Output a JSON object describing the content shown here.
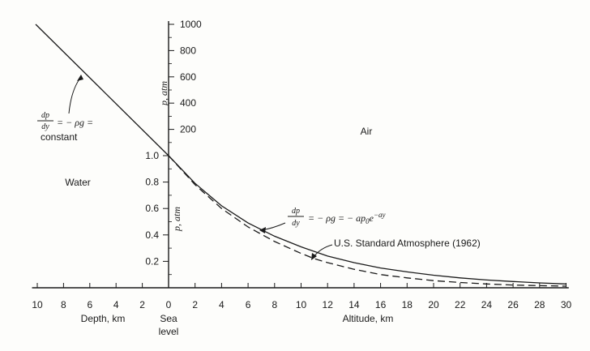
{
  "chart_data": {
    "type": "line",
    "x_axis": {
      "tick_labels_left": [
        "10",
        "8",
        "6",
        "4",
        "2"
      ],
      "tick_labels_right": [
        "0",
        "2",
        "4",
        "6",
        "8",
        "10",
        "12",
        "14",
        "16",
        "18",
        "20",
        "22",
        "24",
        "26",
        "28",
        "30"
      ],
      "xlabel_left": "Depth, km",
      "xlabel_center": [
        "Sea",
        "level"
      ],
      "xlabel_right": "Altitude, km",
      "range": [
        -10,
        30
      ]
    },
    "y_axis_upper": {
      "label": "p, atm",
      "tick_labels": [
        "200",
        "400",
        "600",
        "800",
        "1000"
      ],
      "range": [
        0,
        1000
      ]
    },
    "y_axis_lower": {
      "label": "p, atm",
      "tick_labels": [
        "0.2",
        "0.4",
        "0.6",
        "0.8",
        "1.0"
      ],
      "range": [
        0,
        1.0
      ]
    },
    "regions": {
      "water": "Water",
      "air": "Air"
    },
    "annotations": {
      "water_eq": {
        "frac_num": "dp",
        "frac_den": "dy",
        "rhs": "= − ρg =",
        "tail": "constant"
      },
      "air_eq": {
        "frac_num": "dp",
        "frac_den": "dy",
        "rhs": "= − ρg = − ap",
        "sub": "0",
        "e": "e",
        "sup": "−ay"
      },
      "standard": "U.S. Standard Atmosphere (1962)"
    },
    "series": [
      {
        "kind": "water-linear",
        "style": "solid",
        "x": [
          -10,
          0
        ],
        "y": [
          1000,
          1
        ]
      },
      {
        "kind": "exponential",
        "style": "solid",
        "x": [
          0,
          2,
          4,
          6,
          8,
          10,
          12,
          14,
          16,
          18,
          20,
          22,
          24,
          26,
          28,
          30
        ],
        "y": [
          1.0,
          0.79,
          0.62,
          0.49,
          0.39,
          0.31,
          0.24,
          0.19,
          0.15,
          0.12,
          0.095,
          0.075,
          0.059,
          0.047,
          0.037,
          0.029
        ]
      },
      {
        "kind": "standard-atmosphere",
        "style": "dashed",
        "x": [
          0,
          2,
          4,
          6,
          8,
          10,
          11,
          12,
          14,
          16,
          18,
          20,
          22,
          24,
          26,
          28,
          30
        ],
        "y": [
          1.0,
          0.78,
          0.6,
          0.46,
          0.35,
          0.26,
          0.22,
          0.19,
          0.14,
          0.1,
          0.075,
          0.054,
          0.04,
          0.029,
          0.021,
          0.016,
          0.012
        ]
      }
    ],
    "colors": {
      "ink": "#1a1a1a",
      "axis": "#1a1a1a",
      "background": "#fdfdfb"
    }
  }
}
